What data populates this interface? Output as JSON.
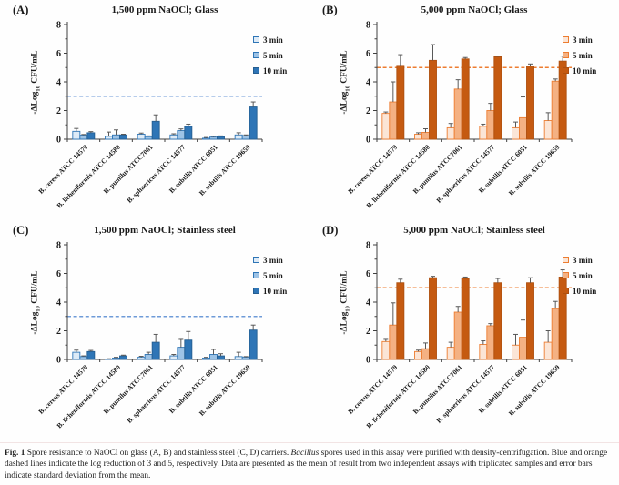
{
  "figure": {
    "caption": {
      "prefix": "Fig. 1",
      "body_1": " Spore resistance to NaOCl on glass (A, B) and stainless steel (C, D) carriers. ",
      "italic_word": "Bacillus",
      "body_2": " spores used in this assay were purified with density-centrifugation. Blue and orange dashed lines indicate the log reduction of 3 and 5, respectively. Data are presented as the mean of result from two independent assays with triplicated samples and error bars indicate standard deviation from the mean."
    }
  },
  "colors": {
    "axis": "#404040",
    "error_bar": "#595959"
  },
  "chart_data": [
    {
      "type": "bar",
      "panel_label": "(A)",
      "title": "1,500 ppm NaOCl; Glass",
      "ylabel_parts": [
        "-ΔLog",
        "10",
        " CFU/mL"
      ],
      "xlabel": "",
      "ylim": [
        0,
        8
      ],
      "yticks": [
        0,
        2,
        4,
        6,
        8
      ],
      "grid": false,
      "legend_position": "right",
      "ref_line": {
        "value": 3,
        "color": "#6E9BD8",
        "style": "dashed",
        "meaning": "log reduction of 3"
      },
      "categories": [
        "B. cereus ATCC 14579",
        "B. licheniformis ATCC 14580",
        "B. pumilus ATCC7061",
        "B. sphaericus ATCC 14577",
        "B. subtilis ATCC 6051",
        "B. subtilis ATCC 19659"
      ],
      "series": [
        {
          "name": "3 min",
          "fill": "#DEEBF7",
          "border": "#2E75B6",
          "values": [
            0.55,
            0.2,
            0.35,
            0.3,
            0.07,
            0.3
          ],
          "errors": [
            0.2,
            0.3,
            0.08,
            0.08,
            0.05,
            0.15
          ]
        },
        {
          "name": "5 min",
          "fill": "#9DC3E6",
          "border": "#2E75B6",
          "values": [
            0.28,
            0.3,
            0.18,
            0.6,
            0.15,
            0.25
          ],
          "errors": [
            0.05,
            0.35,
            0.05,
            0.12,
            0.05,
            0.05
          ]
        },
        {
          "name": "10 min",
          "fill": "#2E75B6",
          "border": "#255E91",
          "values": [
            0.45,
            0.3,
            1.25,
            0.9,
            0.18,
            2.25
          ],
          "errors": [
            0.08,
            0.05,
            0.45,
            0.15,
            0.05,
            0.35
          ]
        }
      ]
    },
    {
      "type": "bar",
      "panel_label": "(B)",
      "title": "5,000 ppm NaOCl; Glass",
      "ylabel_parts": [
        "-ΔLog",
        "10",
        " CFU/mL"
      ],
      "xlabel": "",
      "ylim": [
        0,
        8
      ],
      "yticks": [
        0,
        2,
        4,
        6,
        8
      ],
      "grid": false,
      "legend_position": "right",
      "ref_line": {
        "value": 5,
        "color": "#ED7D31",
        "style": "dashed",
        "meaning": "log reduction of 5"
      },
      "categories": [
        "B. cereus ATCC 14579",
        "B. licheniformis ATCC 14580",
        "B. pumilus ATCC7061",
        "B. sphaericus ATCC 14577",
        "B. subtilis ATCC 6051",
        "B. subtilis ATCC 19659"
      ],
      "series": [
        {
          "name": "3 min",
          "fill": "#FBE5D6",
          "border": "#ED7D31",
          "values": [
            1.8,
            0.35,
            0.8,
            0.9,
            0.8,
            1.3
          ],
          "errors": [
            0.1,
            0.1,
            0.3,
            0.15,
            0.4,
            0.55
          ]
        },
        {
          "name": "5 min",
          "fill": "#F4B183",
          "border": "#ED7D31",
          "values": [
            2.6,
            0.48,
            3.5,
            2.0,
            1.5,
            4.05
          ],
          "errors": [
            1.4,
            0.25,
            0.65,
            0.5,
            1.45,
            0.15
          ]
        },
        {
          "name": "10 min",
          "fill": "#C55A11",
          "border": "#AE5010",
          "values": [
            5.15,
            5.5,
            5.6,
            5.75,
            5.1,
            5.45
          ],
          "errors": [
            0.75,
            1.1,
            0.1,
            0.05,
            0.15,
            0.35
          ]
        }
      ]
    },
    {
      "type": "bar",
      "panel_label": "(C)",
      "title": "1,500 ppm NaOCl; Stainless steel",
      "ylabel_parts": [
        "-ΔLog",
        "10",
        " CFU/mL"
      ],
      "xlabel": "",
      "ylim": [
        0,
        8
      ],
      "yticks": [
        0,
        2,
        4,
        6,
        8
      ],
      "grid": false,
      "legend_position": "right",
      "ref_line": {
        "value": 3,
        "color": "#6E9BD8",
        "style": "dashed",
        "meaning": "log reduction of 3"
      },
      "categories": [
        "B. cereus ATCC 14579",
        "B. licheniformis ATCC 14580",
        "B. pumilus ATCC7061",
        "B. sphaericus ATCC 14577",
        "B. subtilis ATCC 6051",
        "B. subtilis ATCC 19659"
      ],
      "series": [
        {
          "name": "3 min",
          "fill": "#DEEBF7",
          "border": "#2E75B6",
          "values": [
            0.5,
            0.03,
            0.15,
            0.25,
            0.1,
            0.2
          ],
          "errors": [
            0.15,
            0.02,
            0.07,
            0.1,
            0.05,
            0.3
          ]
        },
        {
          "name": "5 min",
          "fill": "#9DC3E6",
          "border": "#2E75B6",
          "values": [
            0.2,
            0.1,
            0.35,
            0.85,
            0.35,
            0.15
          ],
          "errors": [
            0.05,
            0.05,
            0.15,
            0.55,
            0.35,
            0.05
          ]
        },
        {
          "name": "10 min",
          "fill": "#2E75B6",
          "border": "#255E91",
          "values": [
            0.55,
            0.25,
            1.2,
            1.35,
            0.25,
            2.05
          ],
          "errors": [
            0.08,
            0.05,
            0.55,
            0.6,
            0.15,
            0.35
          ]
        }
      ]
    },
    {
      "type": "bar",
      "panel_label": "(D)",
      "title": "5,000 ppm NaOCl; Stainless steel",
      "ylabel_parts": [
        "-ΔLog",
        "10",
        " CFU/mL"
      ],
      "xlabel": "",
      "ylim": [
        0,
        8
      ],
      "yticks": [
        0,
        2,
        4,
        6,
        8
      ],
      "grid": false,
      "legend_position": "right",
      "ref_line": {
        "value": 5,
        "color": "#ED7D31",
        "style": "dashed",
        "meaning": "log reduction of 5"
      },
      "categories": [
        "B. cereus ATCC 14579",
        "B. licheniformis ATCC 14580",
        "B. pumilus ATCC7061",
        "B. sphaericus ATCC 14577",
        "B. subtilis ATCC 6051",
        "B. subtilis ATCC 19659"
      ],
      "series": [
        {
          "name": "3 min",
          "fill": "#FBE5D6",
          "border": "#ED7D31",
          "values": [
            1.25,
            0.55,
            0.85,
            1.05,
            1.0,
            1.2
          ],
          "errors": [
            0.15,
            0.1,
            0.35,
            0.25,
            0.75,
            0.8
          ]
        },
        {
          "name": "5 min",
          "fill": "#F4B183",
          "border": "#ED7D31",
          "values": [
            2.4,
            0.75,
            3.3,
            2.35,
            1.55,
            3.55
          ],
          "errors": [
            1.55,
            0.4,
            0.4,
            0.15,
            1.2,
            0.5
          ]
        },
        {
          "name": "10 min",
          "fill": "#C55A11",
          "border": "#AE5010",
          "values": [
            5.35,
            5.7,
            5.65,
            5.35,
            5.35,
            5.75
          ],
          "errors": [
            0.25,
            0.1,
            0.1,
            0.3,
            0.35,
            0.5
          ]
        }
      ]
    }
  ]
}
